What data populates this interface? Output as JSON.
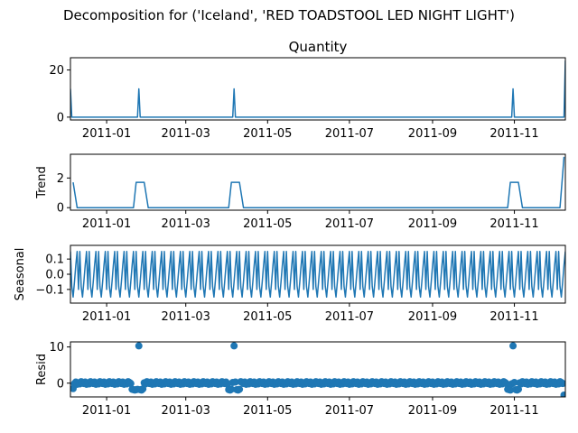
{
  "figure": {
    "suptitle": "Decomposition for ('Iceland', 'RED TOADSTOOL LED NIGHT LIGHT')",
    "line_color": "#1f77b4"
  },
  "chart_data": [
    {
      "type": "line",
      "title": "Quantity",
      "ylabel": "",
      "x_ticks": [
        "2011-01",
        "2011-03",
        "2011-05",
        "2011-07",
        "2011-09",
        "2011-11"
      ],
      "y_ticks": [
        "0",
        "20"
      ],
      "xlim": [
        "2010-12-05",
        "2011-12-09"
      ],
      "ylim": [
        -1.2,
        25.2
      ],
      "x": [
        "2010-12-05",
        "2010-12-06",
        "2011-01-24",
        "2011-01-25",
        "2011-01-26",
        "2011-04-05",
        "2011-04-06",
        "2011-04-07",
        "2011-10-30",
        "2011-10-31",
        "2011-11-01",
        "2011-12-08",
        "2011-12-09"
      ],
      "values": [
        12,
        0,
        0,
        12,
        0,
        0,
        12,
        0,
        0,
        12,
        0,
        0,
        24
      ]
    },
    {
      "type": "line",
      "title": "",
      "ylabel": "Trend",
      "x_ticks": [
        "2011-01",
        "2011-03",
        "2011-05",
        "2011-07",
        "2011-09",
        "2011-11"
      ],
      "y_ticks": [
        "0",
        "2"
      ],
      "xlim": [
        "2010-12-05",
        "2011-12-09"
      ],
      "ylim": [
        -0.17,
        3.6
      ],
      "x": [
        "2010-12-07",
        "2010-12-10",
        "2011-01-21",
        "2011-01-23",
        "2011-01-29",
        "2011-02-01",
        "2011-04-02",
        "2011-04-04",
        "2011-04-10",
        "2011-04-13",
        "2011-10-27",
        "2011-10-29",
        "2011-11-04",
        "2011-11-07",
        "2011-12-05",
        "2011-12-08"
      ],
      "values": [
        1.71,
        0,
        0,
        1.71,
        1.71,
        0,
        0,
        1.71,
        1.71,
        0,
        0,
        1.71,
        1.71,
        0,
        0,
        3.43
      ]
    },
    {
      "type": "line",
      "title": "",
      "ylabel": "Seasonal",
      "x_ticks": [
        "2011-01",
        "2011-03",
        "2011-05",
        "2011-07",
        "2011-09",
        "2011-11"
      ],
      "y_ticks": [
        "0.1",
        "0.0",
        "−0.1"
      ],
      "xlim": [
        "2010-12-05",
        "2011-12-09"
      ],
      "ylim": [
        -0.19,
        0.19
      ],
      "period_days": 7,
      "pattern": [
        0.15,
        -0.08,
        -0.15,
        -0.05,
        0.06,
        0.15,
        -0.1
      ]
    },
    {
      "type": "scatter",
      "title": "",
      "ylabel": "Resid",
      "x_ticks": [
        "2011-01",
        "2011-03",
        "2011-05",
        "2011-07",
        "2011-09",
        "2011-11"
      ],
      "y_ticks": [
        "0",
        "10"
      ],
      "xlim": [
        "2010-12-05",
        "2011-12-09"
      ],
      "ylim": [
        -3.8,
        11.4
      ],
      "start": "2010-12-07",
      "end": "2011-12-08",
      "baseline_values": [
        0.2,
        -0.1,
        0.3,
        -0.3,
        0.1,
        -0.2,
        0.4
      ],
      "outliers": [
        {
          "x": "2010-12-07",
          "y": -1.5
        },
        {
          "x": "2011-01-20",
          "y": -1.7
        },
        {
          "x": "2011-01-21",
          "y": -1.8
        },
        {
          "x": "2011-01-22",
          "y": -1.9
        },
        {
          "x": "2011-01-23",
          "y": -1.8
        },
        {
          "x": "2011-01-24",
          "y": -1.7
        },
        {
          "x": "2011-01-25",
          "y": 10.3
        },
        {
          "x": "2011-01-26",
          "y": -1.8
        },
        {
          "x": "2011-01-27",
          "y": -1.9
        },
        {
          "x": "2011-01-28",
          "y": -1.6
        },
        {
          "x": "2011-04-02",
          "y": -1.8
        },
        {
          "x": "2011-04-03",
          "y": -1.9
        },
        {
          "x": "2011-04-04",
          "y": -1.7
        },
        {
          "x": "2011-04-06",
          "y": 10.3
        },
        {
          "x": "2011-04-08",
          "y": -1.8
        },
        {
          "x": "2011-04-09",
          "y": -1.9
        },
        {
          "x": "2011-04-10",
          "y": -1.7
        },
        {
          "x": "2011-10-27",
          "y": -1.7
        },
        {
          "x": "2011-10-28",
          "y": -1.8
        },
        {
          "x": "2011-10-29",
          "y": -1.9
        },
        {
          "x": "2011-10-31",
          "y": 10.3
        },
        {
          "x": "2011-11-02",
          "y": -1.8
        },
        {
          "x": "2011-11-03",
          "y": -1.9
        },
        {
          "x": "2011-11-04",
          "y": -1.7
        },
        {
          "x": "2011-12-08",
          "y": -3.3
        }
      ]
    }
  ]
}
